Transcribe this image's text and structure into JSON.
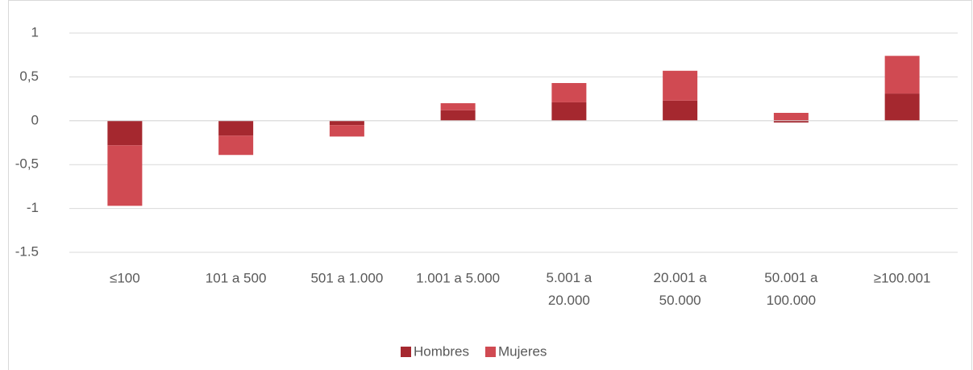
{
  "chart_data": {
    "type": "bar",
    "stacked": true,
    "categories": [
      "≤100",
      "101 a 500",
      "501 a 1.000",
      "1.001 a 5.000",
      "5.001 a 20.000",
      "20.001 a 50.000",
      "50.001 a 100.000",
      "≥100.001"
    ],
    "series": [
      {
        "name": "Hombres",
        "color": "#a5282f",
        "values": [
          -0.28,
          -0.17,
          -0.05,
          0.12,
          0.21,
          0.23,
          -0.02,
          0.31
        ]
      },
      {
        "name": "Mujeres",
        "color": "#d04a52",
        "values": [
          -0.69,
          -0.22,
          -0.13,
          0.08,
          0.22,
          0.34,
          0.09,
          0.43
        ]
      }
    ],
    "ylim": [
      -1.5,
      1
    ],
    "yticks": [
      -1.5,
      {
        "value": -1,
        "label": "-1"
      },
      {
        "value": -0.5,
        "label": "-0,5"
      },
      0,
      {
        "value": 0.5,
        "label": "0,5"
      },
      1
    ],
    "grid": true,
    "legend": "bottom"
  }
}
